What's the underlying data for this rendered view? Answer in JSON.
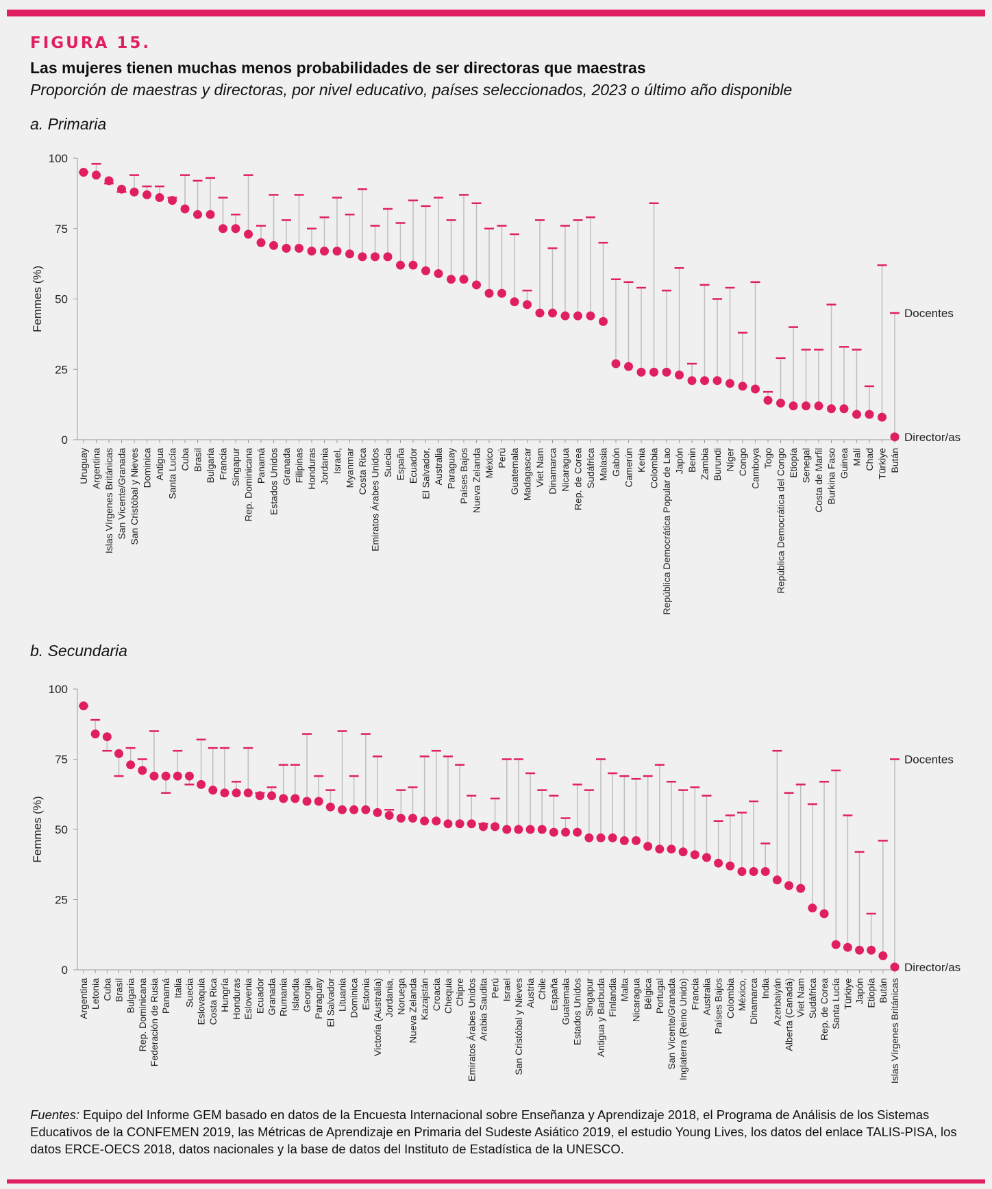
{
  "figure_label": "FIGURA 15.",
  "title": "Las mujeres tienen muchas menos probabilidades de ser directoras que maestras",
  "subtitle": "Proporción de maestras y directoras, por nivel educativo, países seleccionados, 2023 o último año disponible",
  "sources": {
    "lead": "Fuentes:",
    "text": "Equipo del Informe GEM basado en datos de la Encuesta Internacional sobre Enseñanza y Aprendizaje 2018, el Programa de Análisis de los Sistemas Educativos de la CONFEMEN 2019, las Métricas de Aprendizaje en Primaria del Sudeste Asiático 2019, el estudio Young Lives, los datos del enlace TALIS-PISA, los datos ERCE-OECS 2018, datos nacionales y la base de datos del Instituto de Estadística de la UNESCO."
  },
  "colors": {
    "accent": "#e01f63",
    "stem": "#bdbdbd",
    "axis": "#9a9a9a"
  },
  "chart_data": [
    {
      "type": "dumbbell",
      "panel_title": "a. Primaria",
      "ylabel": "Femmes (%)",
      "ylim": [
        0,
        100
      ],
      "yticks": [
        0,
        25,
        50,
        75,
        100
      ],
      "end_labels": {
        "teachers": "Docentes",
        "principals": "Director/as"
      },
      "categories": [
        "Uruguay",
        "Argentina",
        "Islas Vírgenes Británicas",
        "San Vicente/Granada",
        "San Cristóbal y Nieves",
        "Dominica",
        "Antigua",
        "Santa Lucía",
        "Cuba",
        "Brasil",
        "Bulgaria",
        "Francia",
        "Singapur",
        "Rep. Dominicana",
        "Panamá",
        "Estados Unidos",
        "Granada",
        "Filipinas",
        "Honduras",
        "Jordania",
        "Israel,",
        "Myanmar",
        "Costa Rica",
        "Emiratos Árabes Unidos",
        "Suecia",
        "España",
        "Ecuador",
        "El Salvador,",
        "Australia",
        "Paraguay",
        "Países Bajos",
        "Nueva Zelanda",
        "México",
        "Perú",
        "Guatemala",
        "Madagascar",
        "Viet Nam",
        "Dinamarca",
        "Nicaragua",
        "Rep. de Corea",
        "Sudáfrica",
        "Malasia",
        "Gabón",
        "Camerún",
        "Kenia",
        "Colombia",
        "República Democrática Popular de Lao",
        "Japón",
        "Benin",
        "Zambia",
        "Burundi",
        "Níger",
        "Congo",
        "Camboya",
        "Togo",
        "República Democrática del Congo",
        "Etiopía",
        "Senegal",
        "Costa de Marfil",
        "Burkina Faso",
        "Guinea",
        "Malí",
        "Chad",
        "Türkiye",
        "Bután"
      ],
      "series": [
        {
          "name": "Docentes",
          "values": [
            95,
            98,
            91,
            88,
            94,
            90,
            90,
            86,
            94,
            92,
            93,
            86,
            80,
            94,
            76,
            87,
            78,
            87,
            75,
            79,
            86,
            80,
            89,
            76,
            82,
            77,
            85,
            83,
            86,
            78,
            87,
            84,
            75,
            76,
            73,
            53,
            78,
            68,
            76,
            78,
            79,
            70,
            57,
            56,
            54,
            84,
            53,
            61,
            27,
            55,
            50,
            54,
            38,
            56,
            17,
            29,
            40,
            32,
            32,
            48,
            33,
            32,
            19,
            62,
            45
          ]
        },
        {
          "name": "Director/as",
          "values": [
            95,
            94,
            92,
            89,
            88,
            87,
            86,
            85,
            82,
            80,
            80,
            75,
            75,
            73,
            70,
            69,
            68,
            68,
            67,
            67,
            67,
            66,
            65,
            65,
            65,
            62,
            62,
            60,
            59,
            57,
            57,
            55,
            52,
            52,
            49,
            48,
            45,
            45,
            44,
            44,
            44,
            42,
            27,
            26,
            24,
            24,
            24,
            23,
            21,
            21,
            21,
            20,
            19,
            18,
            14,
            13,
            12,
            12,
            12,
            11,
            11,
            9,
            9,
            8,
            1
          ]
        }
      ]
    },
    {
      "type": "dumbbell",
      "panel_title": "b. Secundaria",
      "ylabel": "Femmes (%)",
      "ylim": [
        0,
        100
      ],
      "yticks": [
        0,
        25,
        50,
        75,
        100
      ],
      "end_labels": {
        "teachers": "Docentes",
        "principals": "Director/as"
      },
      "categories": [
        "Argentina",
        "Letonia",
        "Cuba",
        "Brasil",
        "Bulgaria",
        "Rep. Dominicana",
        "Federación de Rusia",
        "Panamá",
        "Italia",
        "Suecia",
        "Eslovaquia",
        "Costa Rica",
        "Hungría",
        "Honduras",
        "Eslovenia",
        "Ecuador",
        "Granada",
        "Rumania",
        "Islandia",
        "Georgia",
        "Paraguay",
        "El Salvador",
        "Lituania",
        "Dominica",
        "Estonia",
        "Victoria (Australia)",
        "Jordania,",
        "Noruega",
        "Nueva Zelanda",
        "Kazajstán",
        "Croacia",
        "Chequia",
        "Chipre",
        "Emiratos Árabes Unidos",
        "Arabia Saudita",
        "Perú",
        "Israel",
        "San Cristóbal y Nieves",
        "Austria",
        "Chile",
        "España",
        "Guatemala",
        "Estados Unidos",
        "Singapur",
        "Antigua y Barbuda",
        "Finlandia",
        "Malta",
        "Nicaragua",
        "Bélgica",
        "Portugal",
        "San Vicente/Granada",
        "Inglaterra (Reino Unido)",
        "Francia",
        "Australia",
        "Países Bajos",
        "Colombia",
        "México,",
        "Dinamarca",
        "India",
        "Azerbaiyán",
        "Alberta (Canadá)",
        "Viet Nam",
        "Sudáfrica",
        "Rep. de Corea",
        "Santa Lucía",
        "Türkiye",
        "Japón",
        "Etiopía",
        "Bután",
        "Islas Vírgenes Británicas"
      ],
      "series": [
        {
          "name": "Docentes",
          "values": [
            94,
            89,
            78,
            69,
            79,
            75,
            85,
            63,
            78,
            66,
            82,
            79,
            79,
            67,
            79,
            63,
            65,
            73,
            73,
            84,
            69,
            64,
            85,
            69,
            84,
            76,
            57,
            64,
            65,
            76,
            78,
            76,
            73,
            62,
            52,
            61,
            75,
            75,
            70,
            64,
            62,
            54,
            66,
            64,
            75,
            70,
            69,
            68,
            69,
            73,
            67,
            64,
            65,
            62,
            53,
            55,
            56,
            60,
            45,
            78,
            63,
            66,
            59,
            67,
            71,
            55,
            42,
            20,
            46,
            75
          ]
        },
        {
          "name": "Director/as",
          "values": [
            94,
            84,
            83,
            77,
            73,
            71,
            69,
            69,
            69,
            69,
            66,
            64,
            63,
            63,
            63,
            62,
            62,
            61,
            61,
            60,
            60,
            58,
            57,
            57,
            57,
            56,
            55,
            54,
            54,
            53,
            53,
            52,
            52,
            52,
            51,
            51,
            50,
            50,
            50,
            50,
            49,
            49,
            49,
            47,
            47,
            47,
            46,
            46,
            44,
            43,
            43,
            42,
            41,
            40,
            38,
            37,
            35,
            35,
            35,
            32,
            30,
            29,
            22,
            20,
            9,
            8,
            7,
            7,
            5,
            1
          ]
        }
      ]
    }
  ]
}
